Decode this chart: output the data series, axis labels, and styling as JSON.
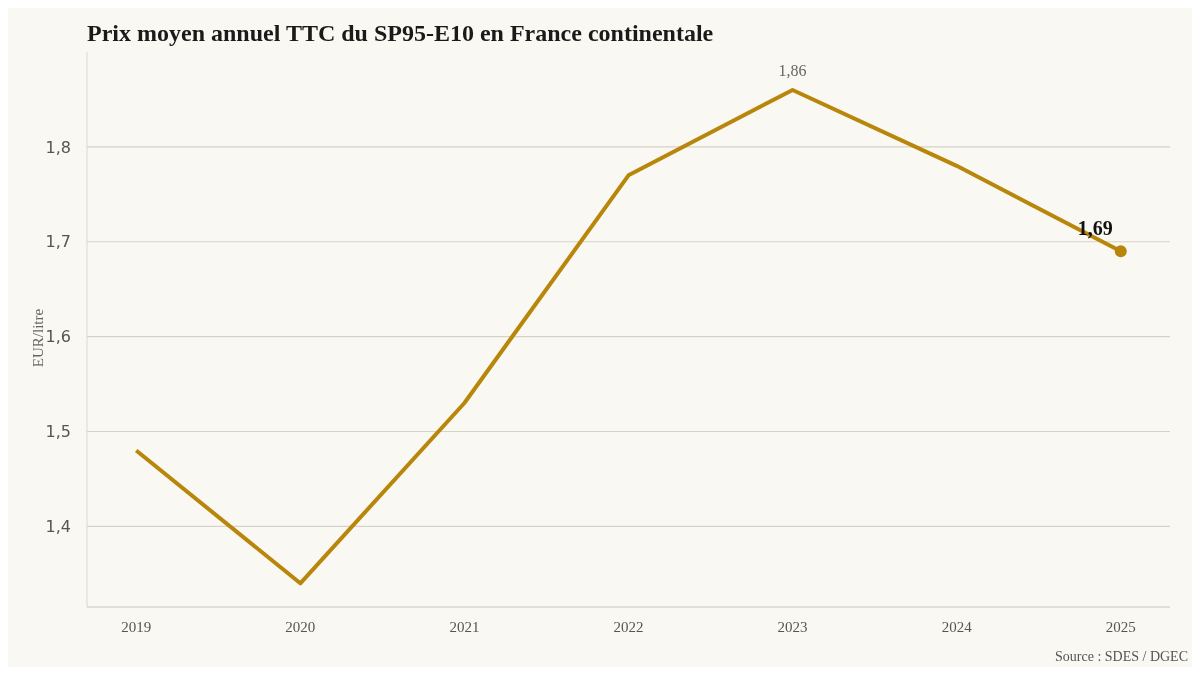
{
  "chart_data": {
    "type": "line",
    "title": "Prix moyen annuel TTC du SP95-E10 en France continentale",
    "ylabel": "EUR/litre",
    "categories": [
      "2019",
      "2020",
      "2021",
      "2022",
      "2023",
      "2024",
      "2025"
    ],
    "series": [
      {
        "color": "#b8860b",
        "values": [
          1.48,
          1.34,
          1.53,
          1.77,
          1.86,
          1.78,
          1.69
        ],
        "value_labels": [
          null,
          null,
          null,
          null,
          "1,86",
          null,
          "1,69"
        ]
      }
    ],
    "yticks": [
      {
        "value": 1.4,
        "label": "1,4"
      },
      {
        "value": 1.5,
        "label": "1,5"
      },
      {
        "value": 1.6,
        "label": "1,6"
      },
      {
        "value": 1.7,
        "label": "1,7"
      },
      {
        "value": 1.8,
        "label": "1,8"
      }
    ],
    "ylim": [
      1.315,
      1.9
    ],
    "grid": "y",
    "legend": false,
    "annotations": [
      "Source : SDES / DGEC"
    ]
  }
}
